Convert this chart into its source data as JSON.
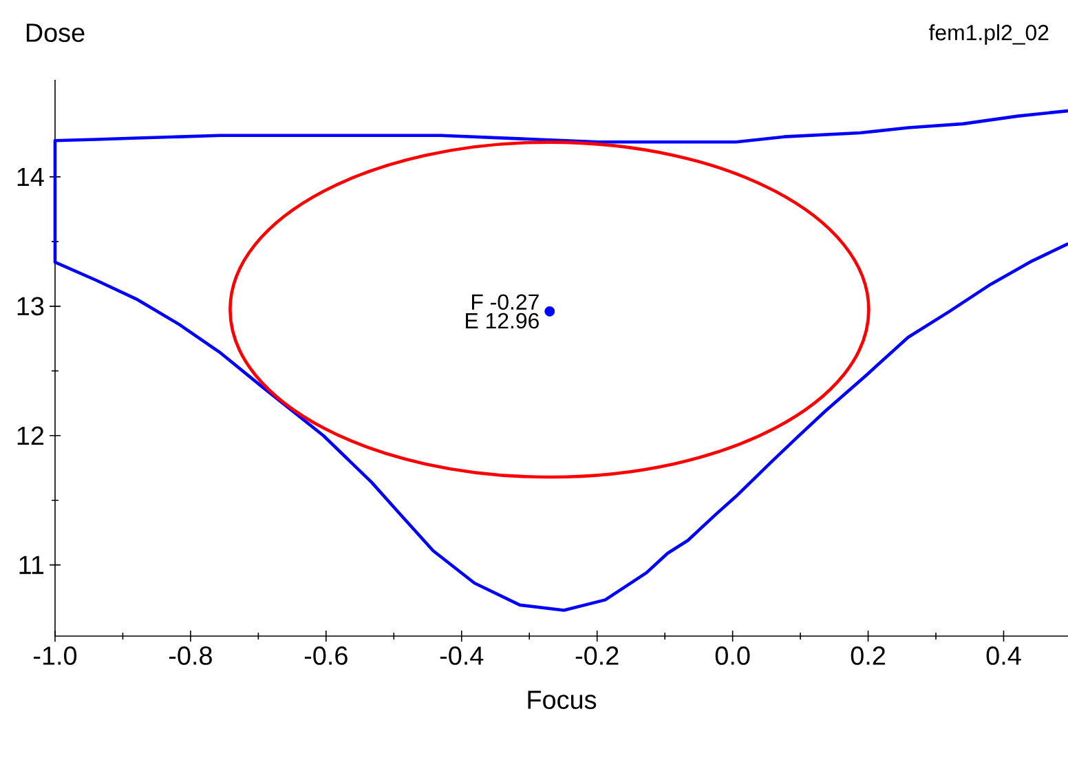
{
  "chart_data": {
    "type": "line",
    "xlabel": "Focus",
    "ylabel": "Dose",
    "annotations": [
      "fem1.pl2_02",
      {
        "text": "F -0.27",
        "x": -0.27,
        "y": 12.96
      },
      {
        "text": "E 12.96",
        "x": -0.27,
        "y": 12.96
      }
    ],
    "xlim": [
      -1,
      0.495
    ],
    "ylim": [
      10.45,
      14.75
    ],
    "xticks": [
      {
        "value": -1,
        "label": "-1.0"
      },
      {
        "value": -0.8,
        "label": "-0.8"
      },
      {
        "value": -0.6,
        "label": "-0.6"
      },
      {
        "value": -0.4,
        "label": "-0.4"
      },
      {
        "value": -0.2,
        "label": "-0.2"
      },
      {
        "value": 0,
        "label": "0.0"
      },
      {
        "value": 0.2,
        "label": "0.2"
      },
      {
        "value": 0.4,
        "label": "0.4"
      }
    ],
    "yticks": [
      11,
      12,
      13,
      14
    ],
    "grid": false,
    "series": [
      {
        "color": "#0000ff",
        "x": [
          0.494,
          0.442,
          0.381,
          0.32,
          0.259,
          0.198,
          0.137,
          0.096,
          0.056,
          0.005,
          -0.025,
          -0.066,
          -0.096,
          -0.127,
          -0.188,
          -0.249,
          -0.314,
          -0.381,
          -0.442,
          -0.492,
          -0.533,
          -0.604,
          -0.695,
          -0.756,
          -0.817,
          -0.878,
          -0.939,
          -1.0,
          -1.0,
          -0.939,
          -0.878,
          -0.756,
          -0.431,
          -0.198,
          0.005,
          0.076,
          0.188,
          0.259,
          0.34,
          0.421,
          0.494
        ],
        "values": [
          13.48,
          13.35,
          13.17,
          12.96,
          12.76,
          12.47,
          12.19,
          11.99,
          11.79,
          11.53,
          11.39,
          11.19,
          11.09,
          10.94,
          10.73,
          10.65,
          10.69,
          10.86,
          11.11,
          11.4,
          11.64,
          12.0,
          12.38,
          12.64,
          12.86,
          13.05,
          13.2,
          13.34,
          14.28,
          14.29,
          14.3,
          14.32,
          14.32,
          14.27,
          14.27,
          14.31,
          14.34,
          14.38,
          14.41,
          14.47,
          14.51
        ]
      },
      {
        "type": "scatter",
        "color": "#0000ff",
        "x": [
          -0.27
        ],
        "values": [
          12.96
        ]
      }
    ]
  }
}
